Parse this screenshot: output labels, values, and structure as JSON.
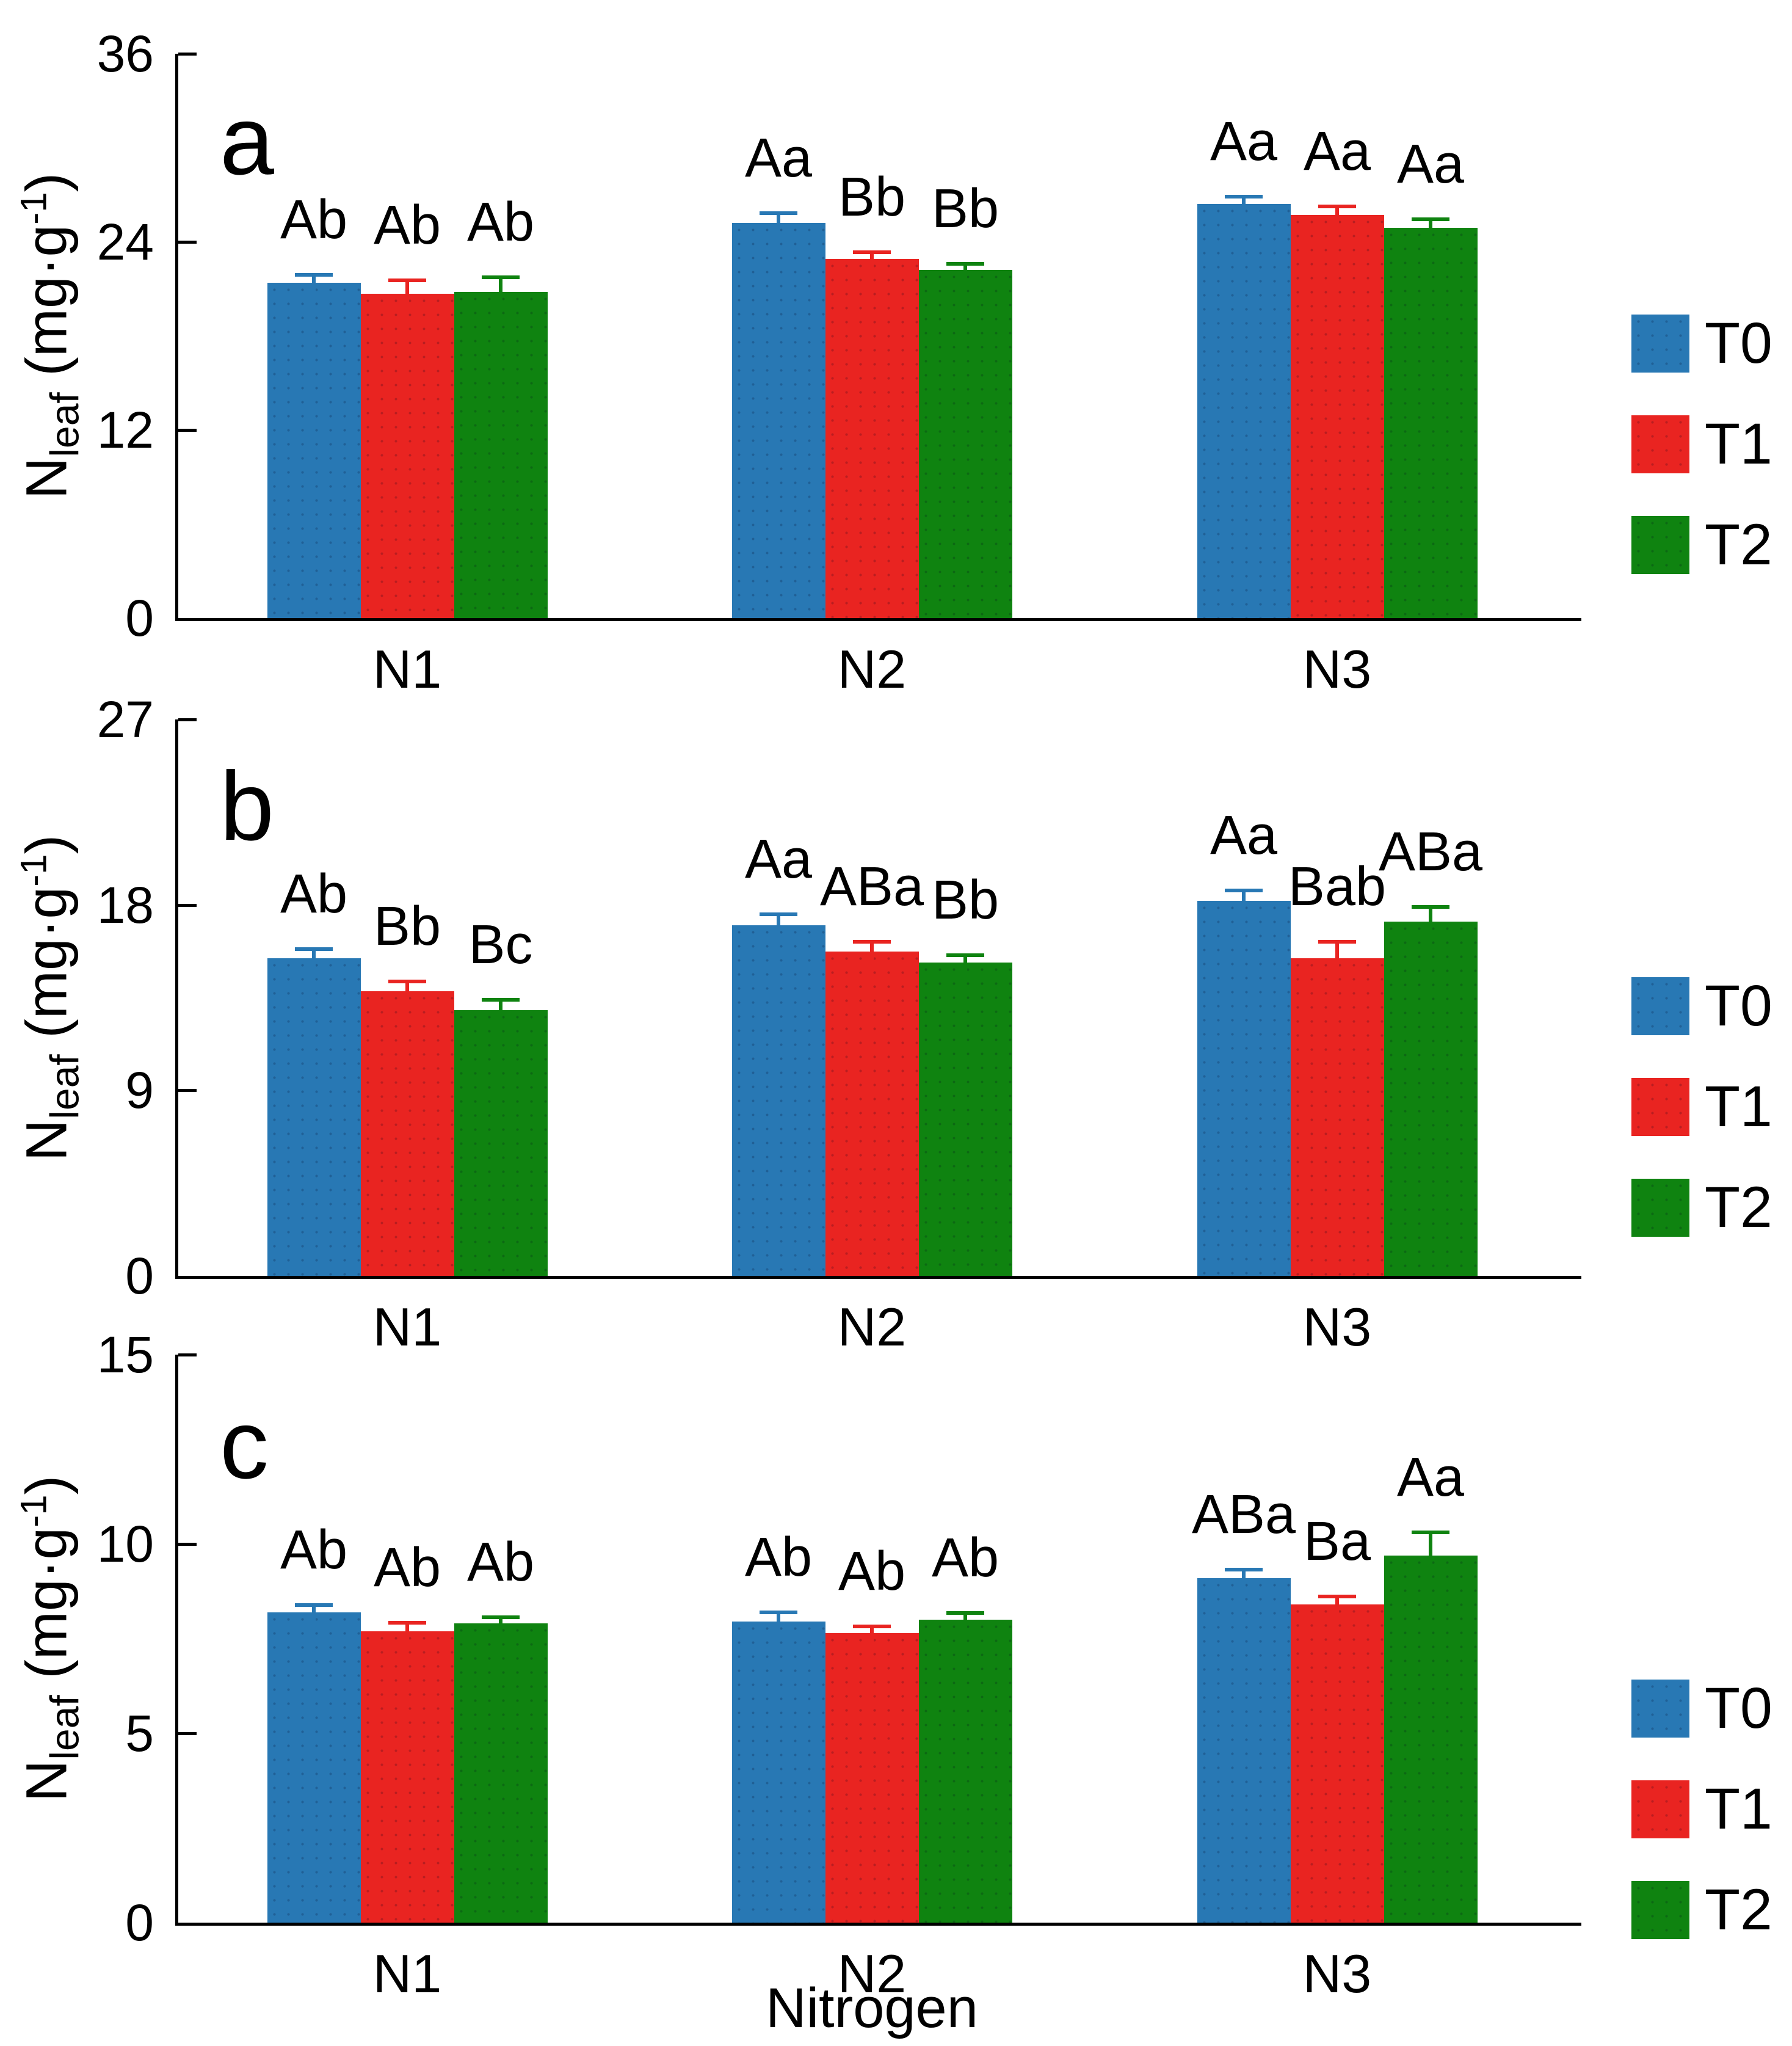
{
  "figure": {
    "xlabel": "Nitrogen",
    "ylabel_parts": {
      "base": "N",
      "sub": "leaf",
      "mid": " (mg·g",
      "sup": "-1",
      "close": ")"
    },
    "legend": [
      {
        "name": "T0",
        "color": "#2878B4"
      },
      {
        "name": "T1",
        "color": "#E92421"
      },
      {
        "name": "T2",
        "color": "#0F8310"
      }
    ]
  },
  "chart_data": [
    {
      "type": "bar",
      "panel_label": "a",
      "title": "",
      "xlabel": "",
      "ylabel": "Nleaf (mg·g-1)",
      "ylim": [
        0,
        36
      ],
      "yticks": [
        0,
        12,
        24,
        36
      ],
      "categories": [
        "N1",
        "N2",
        "N3"
      ],
      "legend_position": "right",
      "grid": false,
      "series": [
        {
          "name": "T0",
          "color": "#2878B4",
          "values": [
            21.4,
            25.2,
            26.4
          ],
          "errors": [
            0.5,
            0.65,
            0.5
          ],
          "letters": [
            "Ab",
            "Aa",
            "Aa"
          ]
        },
        {
          "name": "T1",
          "color": "#E92421",
          "values": [
            20.7,
            22.9,
            25.7
          ],
          "errors": [
            0.85,
            0.45,
            0.55
          ],
          "letters": [
            "Ab",
            "Bb",
            "Aa"
          ]
        },
        {
          "name": "T2",
          "color": "#0F8310",
          "values": [
            20.8,
            22.2,
            24.9
          ],
          "errors": [
            0.95,
            0.4,
            0.55
          ],
          "letters": [
            "Ab",
            "Bb",
            "Aa"
          ]
        }
      ]
    },
    {
      "type": "bar",
      "panel_label": "b",
      "title": "",
      "xlabel": "",
      "ylabel": "Nleaf (mg·g-1)",
      "ylim": [
        0,
        27
      ],
      "yticks": [
        0,
        9,
        18,
        27
      ],
      "categories": [
        "N1",
        "N2",
        "N3"
      ],
      "legend_position": "right",
      "grid": false,
      "series": [
        {
          "name": "T0",
          "color": "#2878B4",
          "values": [
            15.4,
            17.0,
            18.2
          ],
          "errors": [
            0.45,
            0.55,
            0.5
          ],
          "letters": [
            "Ab",
            "Aa",
            "Aa"
          ]
        },
        {
          "name": "T1",
          "color": "#E92421",
          "values": [
            13.8,
            15.75,
            15.4
          ],
          "errors": [
            0.5,
            0.45,
            0.8
          ],
          "letters": [
            "Bb",
            "ABa",
            "Bab"
          ]
        },
        {
          "name": "T2",
          "color": "#0F8310",
          "values": [
            12.9,
            15.2,
            17.2
          ],
          "errors": [
            0.5,
            0.35,
            0.7
          ],
          "letters": [
            "Bc",
            "Bb",
            "ABa"
          ]
        }
      ]
    },
    {
      "type": "bar",
      "panel_label": "c",
      "title": "",
      "xlabel": "Nitrogen",
      "ylabel": "Nleaf (mg·g-1)",
      "ylim": [
        0,
        15
      ],
      "yticks": [
        0,
        5,
        10,
        15
      ],
      "categories": [
        "N1",
        "N2",
        "N3"
      ],
      "legend_position": "right",
      "grid": false,
      "series": [
        {
          "name": "T0",
          "color": "#2878B4",
          "values": [
            8.2,
            7.95,
            9.1
          ],
          "errors": [
            0.18,
            0.25,
            0.22
          ],
          "letters": [
            "Ab",
            "Ab",
            "ABa"
          ]
        },
        {
          "name": "T1",
          "color": "#E92421",
          "values": [
            7.7,
            7.65,
            8.4
          ],
          "errors": [
            0.22,
            0.18,
            0.22
          ],
          "letters": [
            "Ab",
            "Ab",
            "Ba"
          ]
        },
        {
          "name": "T2",
          "color": "#0F8310",
          "values": [
            7.9,
            8.0,
            9.7
          ],
          "errors": [
            0.17,
            0.18,
            0.6
          ],
          "letters": [
            "Ab",
            "Ab",
            "Aa"
          ]
        }
      ]
    }
  ]
}
